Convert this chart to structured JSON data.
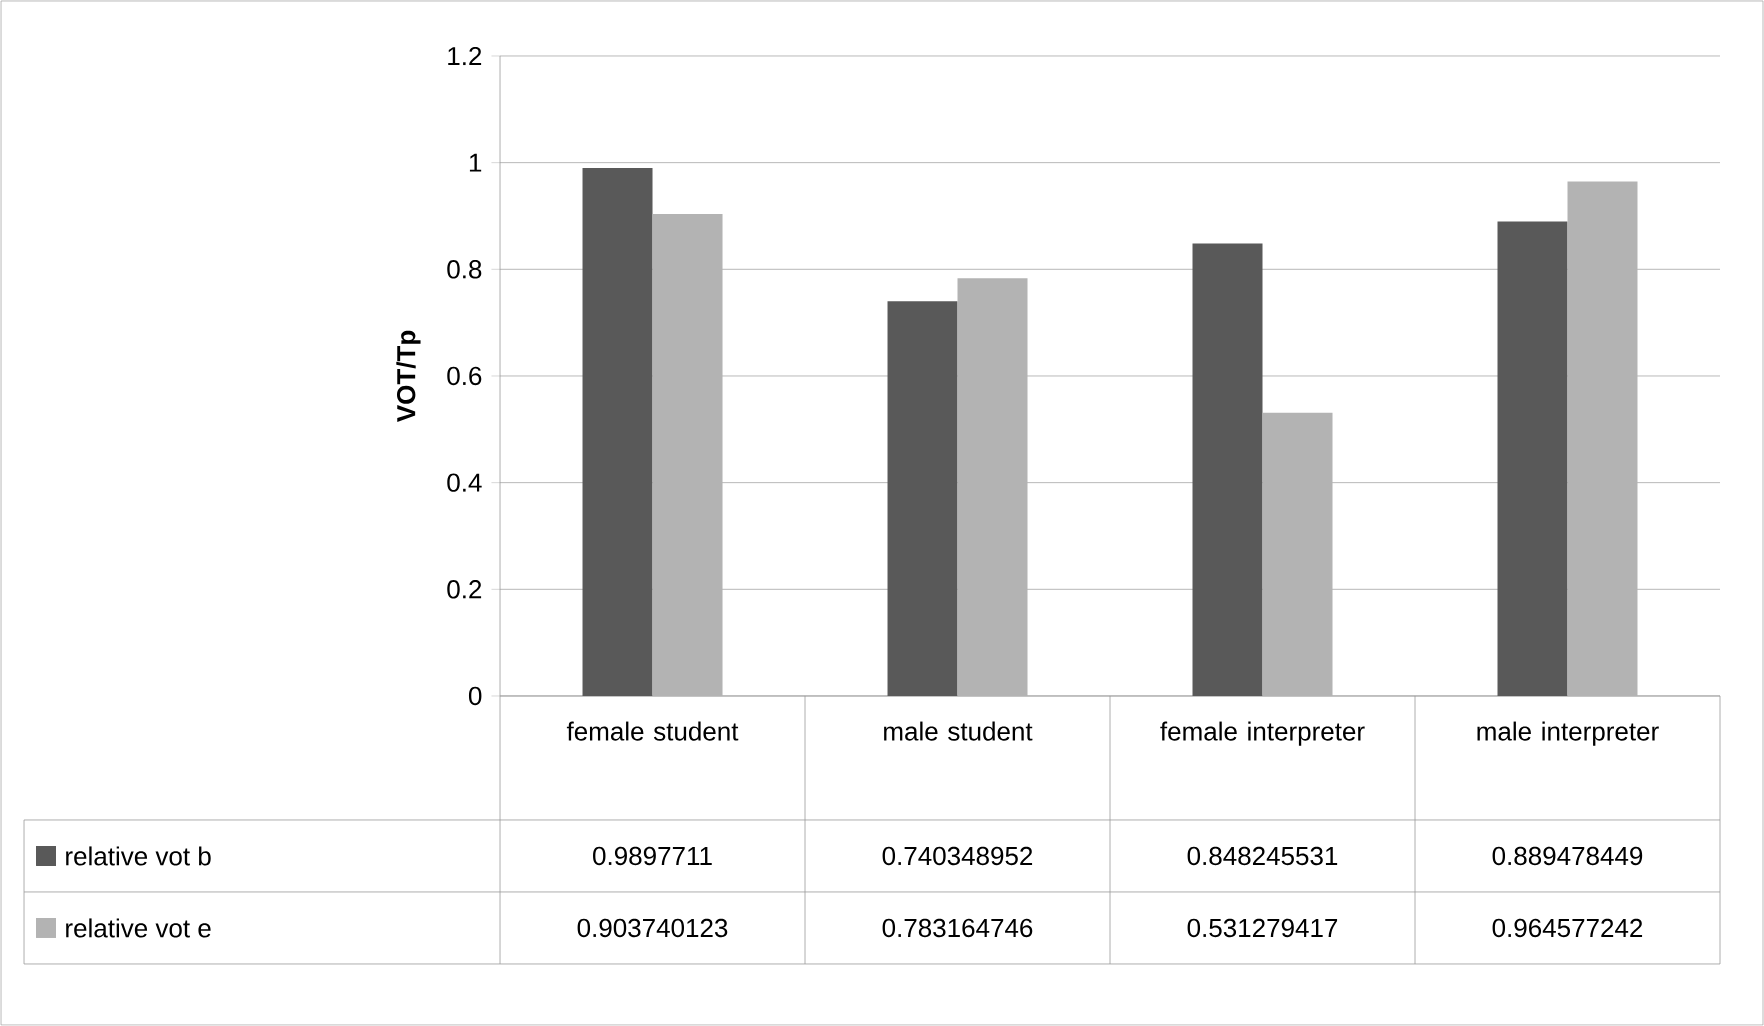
{
  "chart_data": {
    "type": "bar",
    "ylabel": "VOT/Tp",
    "categories": [
      "female student",
      "male student",
      "female interpreter",
      "male interpreter"
    ],
    "series": [
      {
        "name": "relative vot b",
        "color": "#595959",
        "values": [
          0.9897711,
          0.740348952,
          0.848245531,
          0.889478449
        ],
        "value_labels": [
          "0.9897711",
          "0.740348952",
          "0.848245531",
          "0.889478449"
        ]
      },
      {
        "name": "relative vot e",
        "color": "#b3b3b3",
        "values": [
          0.903740123,
          0.783164746,
          0.531279417,
          0.964577242
        ],
        "value_labels": [
          "0.903740123",
          "0.783164746",
          "0.531279417",
          "0.964577242"
        ]
      }
    ],
    "ylim": [
      0,
      1.2
    ],
    "yticks": [
      0,
      0.2,
      0.4,
      0.6,
      0.8,
      1,
      1.2
    ],
    "grid": "y",
    "legend": "bottom"
  }
}
